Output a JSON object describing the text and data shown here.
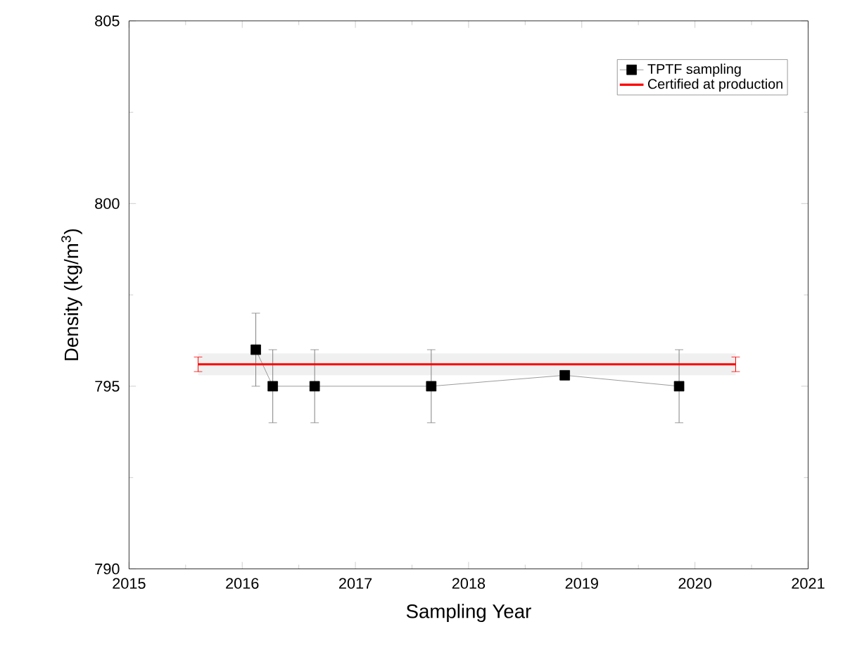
{
  "chart_data": {
    "type": "line",
    "xlabel": "Sampling Year",
    "ylabel": "Density (kg/m$^{3}$)",
    "xlim": [
      2015,
      2021
    ],
    "xticks": [
      2015,
      2016,
      2017,
      2018,
      2019,
      2020,
      2021
    ],
    "ylim": [
      790,
      805
    ],
    "yticks": [
      790,
      795,
      800,
      805
    ],
    "grid": false,
    "legend": "top right",
    "series": [
      {
        "name": "TPTF sampling",
        "color": "#000000",
        "marker": "square",
        "x": [
          2016.12,
          2016.27,
          2016.64,
          2017.67,
          2018.85,
          2019.86
        ],
        "values": [
          796,
          795,
          795,
          795,
          795.3,
          795
        ],
        "errors": [
          1,
          1,
          1,
          1,
          null,
          1
        ]
      },
      {
        "name": "Certified at production",
        "color": "#ff0000",
        "marker": "none",
        "x": [
          2015.61,
          2020.36
        ],
        "values": [
          795.6,
          795.6
        ],
        "errors": [
          0.2,
          0.2
        ],
        "lower": [
          795.3,
          795.3
        ],
        "upper": [
          795.9,
          795.9
        ]
      }
    ]
  }
}
